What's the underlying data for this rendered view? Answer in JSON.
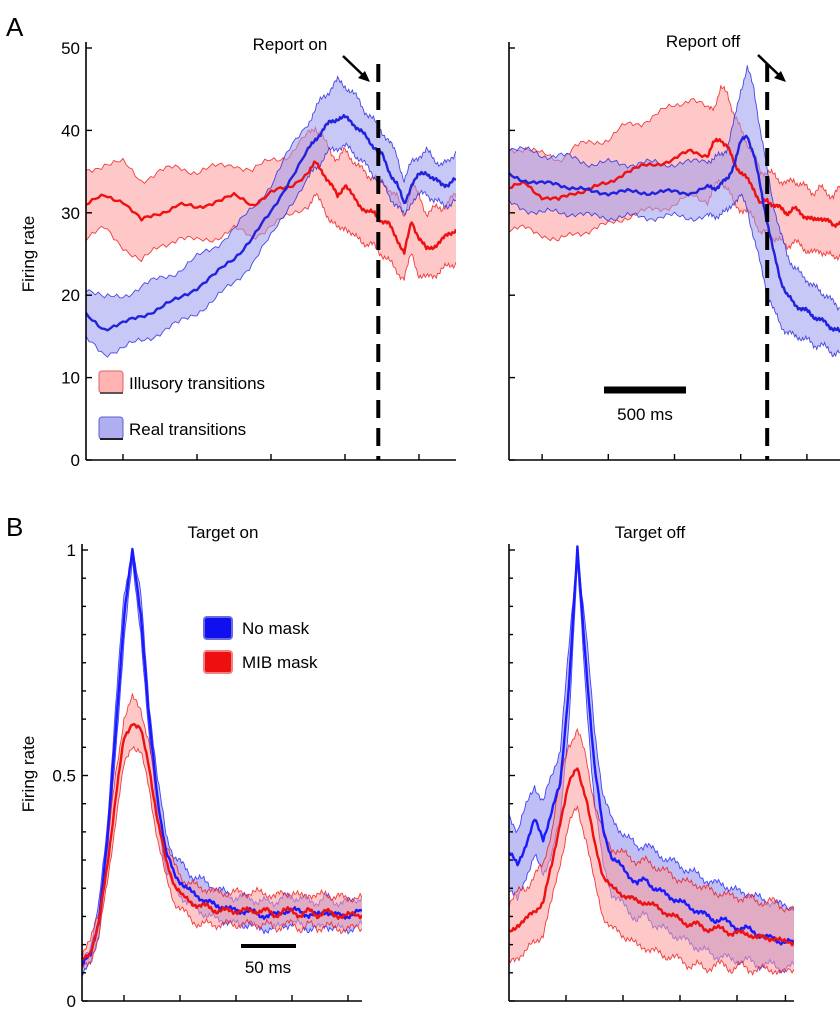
{
  "panels": [
    {
      "letter": "A",
      "ylabel": "Firing rate"
    },
    {
      "letter": "B",
      "ylabel": "Firing rate"
    }
  ],
  "chart_data": [
    {
      "id": "A_left",
      "type": "line",
      "panel": "A",
      "ylabel": "Firing rate",
      "ylim": [
        0,
        50
      ],
      "xlim": [
        0,
        100
      ],
      "y_ticks": [
        0,
        10,
        20,
        30,
        40,
        50
      ],
      "x_ticks": [
        10,
        30,
        50,
        70,
        90
      ],
      "show_y_tick_labels": true,
      "x": [
        0,
        5,
        10,
        15,
        20,
        25,
        30,
        35,
        40,
        45,
        50,
        55,
        60,
        62,
        64,
        66,
        68,
        70,
        72,
        74,
        76,
        78,
        80,
        82,
        84,
        86,
        88,
        90,
        92,
        94,
        96,
        98,
        100
      ],
      "series": [
        {
          "name": "Illusory transitions",
          "color": "#ee1111",
          "fill": "#ff9a9a",
          "values": [
            31,
            32,
            31.5,
            29,
            30,
            31,
            30.5,
            31.5,
            32,
            31,
            32.5,
            33,
            35,
            36,
            35,
            33.5,
            32,
            33.5,
            32,
            31,
            30,
            30,
            29,
            28.5,
            27,
            25,
            29,
            27,
            25.5,
            26,
            26.5,
            27.5,
            28
          ],
          "lower": [
            27,
            28,
            26,
            24,
            26,
            27,
            26.5,
            27,
            28,
            27,
            28.5,
            29.5,
            31,
            32,
            31,
            29,
            28,
            28.5,
            27,
            27,
            26,
            26,
            25,
            24,
            23,
            22,
            25,
            22.5,
            22,
            22.5,
            23,
            23.5,
            24
          ],
          "upper": [
            35,
            36,
            36,
            34,
            35,
            35.5,
            35,
            35.5,
            36,
            35,
            36.5,
            37,
            39.5,
            40.5,
            39,
            37.5,
            36.5,
            37.5,
            36.5,
            35.5,
            34.5,
            34.5,
            33.5,
            33,
            32,
            29.5,
            33.5,
            32,
            30,
            30.5,
            30.5,
            31.5,
            32
          ]
        },
        {
          "name": "Real transitions",
          "color": "#2222dd",
          "fill": "#9a9aee",
          "values": [
            17.5,
            16,
            16.5,
            17.5,
            18.5,
            19.5,
            21,
            22.5,
            24.5,
            27,
            30,
            34,
            37.5,
            39,
            40,
            41,
            41.5,
            41.5,
            41,
            40,
            39,
            38,
            37,
            35,
            33.5,
            31,
            33.5,
            34.5,
            35,
            34,
            33.5,
            33.5,
            34
          ]
        }
      ],
      "real_band": {
        "lower": [
          14.5,
          13,
          13.5,
          14.5,
          15.5,
          16.5,
          18,
          19.5,
          21.5,
          24,
          27,
          31,
          34,
          35.5,
          36.5,
          37.5,
          38,
          38,
          37.5,
          36.5,
          35.5,
          34.5,
          33.5,
          32,
          31,
          29.5,
          31.5,
          32,
          32.5,
          31.5,
          31,
          31,
          31.5
        ],
        "upper": [
          21,
          19.5,
          20,
          21,
          22,
          23,
          24.5,
          26,
          28,
          30.5,
          33.5,
          37.5,
          41,
          42.5,
          44,
          45,
          46,
          45.5,
          44.5,
          43.5,
          42,
          41,
          40,
          38.5,
          37,
          34,
          36,
          37,
          37.5,
          36.5,
          36,
          36,
          37.5
        ]
      },
      "event_line": {
        "x": 79,
        "label": "Report on"
      },
      "legend": [
        "Illusory transitions",
        "Real transitions"
      ]
    },
    {
      "id": "A_right",
      "type": "line",
      "panel": "A",
      "ylim": [
        0,
        50
      ],
      "xlim": [
        0,
        100
      ],
      "y_ticks": [
        0,
        10,
        20,
        30,
        40,
        50
      ],
      "x_ticks": [
        10,
        30,
        50,
        70,
        90
      ],
      "show_y_tick_labels": false,
      "x": [
        0,
        5,
        10,
        15,
        20,
        25,
        30,
        35,
        40,
        45,
        50,
        55,
        60,
        62,
        64,
        66,
        68,
        70,
        72,
        74,
        76,
        78,
        80,
        82,
        84,
        86,
        88,
        90,
        92,
        94,
        96,
        98,
        100
      ],
      "series": [
        {
          "name": "Illusory transitions",
          "color": "#ee1111",
          "fill": "#ff9a9a",
          "values": [
            33,
            33.5,
            32,
            31.5,
            32.5,
            33,
            33.5,
            35,
            35.5,
            36,
            36.5,
            37.5,
            37,
            38.5,
            39,
            38,
            36,
            35,
            34,
            33,
            31,
            31.5,
            31,
            30.5,
            30,
            30.5,
            30,
            29.5,
            29,
            29.5,
            29,
            28.5,
            29
          ],
          "lower": [
            28,
            28,
            27.5,
            26.5,
            27.5,
            28,
            28.5,
            29.5,
            30,
            30.5,
            31,
            32,
            31.5,
            33,
            34,
            33,
            31,
            30.5,
            30,
            29.5,
            27.5,
            27.5,
            27,
            26.5,
            26,
            26.5,
            26,
            25.5,
            25,
            25.5,
            25,
            24.5,
            25
          ],
          "upper": [
            37.5,
            38,
            37,
            36.5,
            38,
            38.5,
            39,
            40.5,
            41,
            42,
            43,
            44,
            42.5,
            43,
            45,
            44.5,
            42,
            40,
            38.5,
            37,
            35,
            35,
            34.5,
            34,
            33.5,
            34,
            33.5,
            33,
            32.5,
            33,
            32.5,
            32,
            33
          ]
        },
        {
          "name": "Real transitions",
          "color": "#2222dd",
          "fill": "#9a9aee",
          "values": [
            34.5,
            34,
            33.5,
            33.5,
            33,
            32.5,
            32.5,
            32.5,
            32.5,
            32.5,
            32.5,
            32.5,
            33,
            33,
            33.5,
            34,
            36,
            38.5,
            39.5,
            37,
            33,
            29,
            25,
            22,
            20,
            19,
            18.5,
            18,
            17.5,
            17,
            16.5,
            16,
            15.5
          ]
        }
      ],
      "real_band": {
        "lower": [
          31,
          30.5,
          30,
          30,
          30,
          29.5,
          29.5,
          29.5,
          29.5,
          29.5,
          29.5,
          29.5,
          29.5,
          29.5,
          30,
          30,
          31.5,
          32,
          30.5,
          27,
          23.5,
          20.5,
          18,
          16.5,
          15.5,
          15,
          15,
          14.5,
          14,
          14,
          13.5,
          13,
          13
        ],
        "upper": [
          38,
          37.5,
          37,
          37,
          36.5,
          36,
          36,
          36,
          36,
          36,
          36,
          36,
          36.5,
          36.5,
          37,
          38,
          41,
          45,
          47.5,
          45,
          40,
          35,
          31,
          27.5,
          25,
          23.5,
          22.5,
          22,
          21,
          20.5,
          20,
          19,
          18.5
        ]
      },
      "event_line": {
        "x": 78,
        "label": "Report off"
      },
      "scale_bar": {
        "label": "500 ms"
      }
    },
    {
      "id": "B_left",
      "type": "line",
      "panel": "B",
      "title": "Target on",
      "ylabel": "Firing rate",
      "ylim": [
        0,
        1
      ],
      "xlim": [
        0,
        100
      ],
      "y_ticks": [
        0,
        0.5,
        1
      ],
      "y_tick_labels": [
        "0",
        "0.5",
        "1"
      ],
      "y_minor_ticks": [
        0.0625,
        0.125,
        0.1875,
        0.25,
        0.3125,
        0.375,
        0.4375,
        0.5625,
        0.625,
        0.6875,
        0.75,
        0.8125,
        0.875,
        0.9375
      ],
      "x_ticks": [
        15,
        35,
        55,
        75,
        95
      ],
      "x": [
        0,
        3,
        6,
        9,
        12,
        15,
        18,
        21,
        24,
        27,
        30,
        33,
        36,
        39,
        42,
        45,
        48,
        51,
        54,
        57,
        60,
        63,
        66,
        69,
        72,
        75,
        78,
        81,
        84,
        87,
        90,
        93,
        96,
        100
      ],
      "series": [
        {
          "name": "No mask",
          "color": "#1a1aff",
          "fill": "#8a8aee",
          "values": [
            0.08,
            0.1,
            0.18,
            0.35,
            0.6,
            0.85,
            1.0,
            0.86,
            0.62,
            0.45,
            0.33,
            0.28,
            0.26,
            0.24,
            0.23,
            0.22,
            0.21,
            0.21,
            0.2,
            0.2,
            0.2,
            0.19,
            0.19,
            0.19,
            0.2,
            0.2,
            0.2,
            0.19,
            0.19,
            0.2,
            0.19,
            0.19,
            0.19,
            0.2
          ],
          "lower": [
            0.06,
            0.08,
            0.15,
            0.31,
            0.55,
            0.8,
            0.97,
            0.82,
            0.58,
            0.41,
            0.29,
            0.25,
            0.23,
            0.21,
            0.2,
            0.19,
            0.18,
            0.18,
            0.17,
            0.17,
            0.17,
            0.16,
            0.16,
            0.16,
            0.17,
            0.17,
            0.17,
            0.16,
            0.16,
            0.17,
            0.16,
            0.16,
            0.16,
            0.17
          ],
          "upper": [
            0.1,
            0.12,
            0.21,
            0.39,
            0.65,
            0.9,
            1.0,
            0.9,
            0.66,
            0.49,
            0.37,
            0.32,
            0.3,
            0.28,
            0.27,
            0.26,
            0.25,
            0.24,
            0.23,
            0.23,
            0.23,
            0.22,
            0.22,
            0.22,
            0.23,
            0.23,
            0.23,
            0.22,
            0.22,
            0.23,
            0.22,
            0.22,
            0.22,
            0.23
          ]
        },
        {
          "name": "MIB mask",
          "color": "#ee1111",
          "fill": "#ff9a9a",
          "values": [
            0.09,
            0.11,
            0.17,
            0.3,
            0.45,
            0.58,
            0.62,
            0.6,
            0.52,
            0.4,
            0.31,
            0.26,
            0.23,
            0.22,
            0.21,
            0.21,
            0.2,
            0.2,
            0.2,
            0.2,
            0.2,
            0.2,
            0.2,
            0.19,
            0.2,
            0.2,
            0.19,
            0.2,
            0.19,
            0.2,
            0.19,
            0.19,
            0.19,
            0.19
          ],
          "lower": [
            0.07,
            0.09,
            0.14,
            0.26,
            0.4,
            0.52,
            0.57,
            0.55,
            0.47,
            0.36,
            0.27,
            0.22,
            0.2,
            0.18,
            0.17,
            0.17,
            0.17,
            0.17,
            0.17,
            0.17,
            0.17,
            0.17,
            0.17,
            0.16,
            0.17,
            0.17,
            0.16,
            0.17,
            0.16,
            0.17,
            0.16,
            0.16,
            0.16,
            0.16
          ],
          "upper": [
            0.11,
            0.13,
            0.2,
            0.34,
            0.5,
            0.63,
            0.67,
            0.65,
            0.57,
            0.44,
            0.35,
            0.3,
            0.27,
            0.26,
            0.25,
            0.25,
            0.24,
            0.24,
            0.24,
            0.24,
            0.24,
            0.24,
            0.24,
            0.23,
            0.24,
            0.24,
            0.23,
            0.24,
            0.23,
            0.24,
            0.23,
            0.23,
            0.23,
            0.23
          ]
        }
      ],
      "legend": [
        "No mask",
        "MIB mask"
      ],
      "scale_bar": {
        "label": "50 ms"
      }
    },
    {
      "id": "B_right",
      "type": "line",
      "panel": "B",
      "title": "Target off",
      "ylim": [
        0,
        1
      ],
      "xlim": [
        0,
        100
      ],
      "y_ticks": [
        0,
        0.5,
        1
      ],
      "y_minor_ticks": [
        0.0625,
        0.125,
        0.1875,
        0.25,
        0.3125,
        0.375,
        0.4375,
        0.5625,
        0.625,
        0.6875,
        0.75,
        0.8125,
        0.875,
        0.9375
      ],
      "show_y_tick_labels": false,
      "x_ticks": [
        20,
        40,
        60,
        80,
        97
      ],
      "x": [
        0,
        3,
        6,
        9,
        12,
        15,
        18,
        21,
        24,
        27,
        30,
        33,
        36,
        39,
        42,
        45,
        48,
        51,
        54,
        57,
        60,
        63,
        66,
        69,
        72,
        75,
        78,
        81,
        84,
        87,
        90,
        93,
        96,
        100
      ],
      "series": [
        {
          "name": "No mask",
          "color": "#1a1aff",
          "fill": "#8a8aee",
          "values": [
            0.33,
            0.3,
            0.35,
            0.4,
            0.36,
            0.42,
            0.48,
            0.7,
            1.0,
            0.75,
            0.52,
            0.38,
            0.32,
            0.3,
            0.28,
            0.26,
            0.27,
            0.25,
            0.24,
            0.23,
            0.22,
            0.21,
            0.2,
            0.19,
            0.18,
            0.18,
            0.17,
            0.16,
            0.16,
            0.15,
            0.14,
            0.14,
            0.13,
            0.13
          ],
          "lower": [
            0.25,
            0.22,
            0.28,
            0.32,
            0.28,
            0.33,
            0.4,
            0.62,
            0.97,
            0.68,
            0.44,
            0.3,
            0.24,
            0.22,
            0.2,
            0.18,
            0.19,
            0.17,
            0.16,
            0.15,
            0.14,
            0.13,
            0.12,
            0.11,
            0.1,
            0.1,
            0.09,
            0.09,
            0.09,
            0.08,
            0.08,
            0.08,
            0.07,
            0.08
          ],
          "upper": [
            0.41,
            0.38,
            0.43,
            0.48,
            0.44,
            0.5,
            0.56,
            0.78,
            1.0,
            0.82,
            0.6,
            0.46,
            0.4,
            0.38,
            0.36,
            0.34,
            0.35,
            0.33,
            0.32,
            0.31,
            0.3,
            0.29,
            0.28,
            0.27,
            0.26,
            0.26,
            0.25,
            0.24,
            0.24,
            0.23,
            0.22,
            0.22,
            0.21,
            0.21
          ]
        },
        {
          "name": "MIB mask",
          "color": "#ee1111",
          "fill": "#ff9a9a",
          "values": [
            0.15,
            0.17,
            0.18,
            0.2,
            0.22,
            0.3,
            0.4,
            0.48,
            0.52,
            0.45,
            0.35,
            0.28,
            0.25,
            0.24,
            0.23,
            0.22,
            0.22,
            0.21,
            0.2,
            0.19,
            0.18,
            0.17,
            0.17,
            0.16,
            0.16,
            0.16,
            0.15,
            0.15,
            0.15,
            0.14,
            0.14,
            0.14,
            0.13,
            0.13
          ],
          "lower": [
            0.08,
            0.1,
            0.11,
            0.13,
            0.15,
            0.22,
            0.31,
            0.39,
            0.43,
            0.36,
            0.26,
            0.19,
            0.16,
            0.15,
            0.14,
            0.12,
            0.12,
            0.11,
            0.1,
            0.1,
            0.09,
            0.08,
            0.08,
            0.07,
            0.08,
            0.08,
            0.07,
            0.08,
            0.07,
            0.07,
            0.07,
            0.07,
            0.06,
            0.07
          ],
          "upper": [
            0.22,
            0.24,
            0.25,
            0.28,
            0.3,
            0.38,
            0.49,
            0.57,
            0.6,
            0.54,
            0.44,
            0.37,
            0.34,
            0.33,
            0.32,
            0.31,
            0.31,
            0.3,
            0.29,
            0.28,
            0.27,
            0.26,
            0.26,
            0.25,
            0.24,
            0.24,
            0.23,
            0.23,
            0.23,
            0.22,
            0.22,
            0.22,
            0.21,
            0.2
          ]
        }
      ]
    }
  ]
}
